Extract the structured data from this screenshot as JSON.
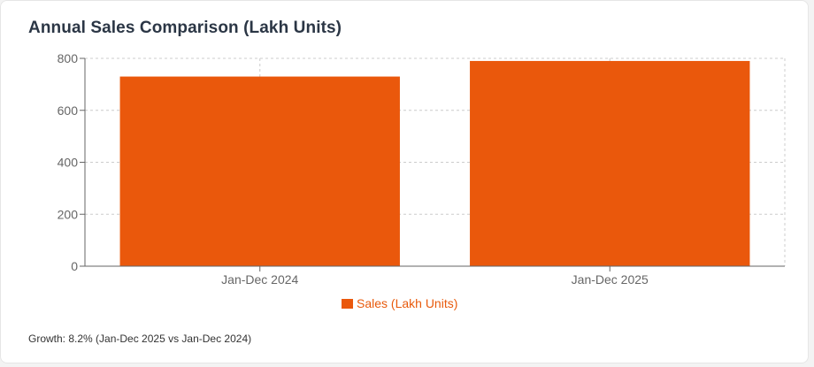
{
  "title": "Annual Sales Comparison (Lakh Units)",
  "footnote": "Growth: 8.2% (Jan-Dec 2025 vs Jan-Dec 2024)",
  "colors": {
    "bar": "#ea580c",
    "axis": "#666666",
    "grid": "#cccccc",
    "tick_text": "#666666",
    "legend_text": "#e85a0c"
  },
  "chart_data": {
    "type": "bar",
    "categories": [
      "Jan-Dec 2024",
      "Jan-Dec 2025"
    ],
    "series": [
      {
        "name": "Sales (Lakh Units)",
        "values": [
          730,
          790
        ]
      }
    ],
    "yticks": [
      0,
      200,
      400,
      600,
      800
    ],
    "ylim": [
      0,
      800
    ],
    "grid": true,
    "legend_position": "bottom-center",
    "xlabel": "",
    "ylabel": ""
  }
}
